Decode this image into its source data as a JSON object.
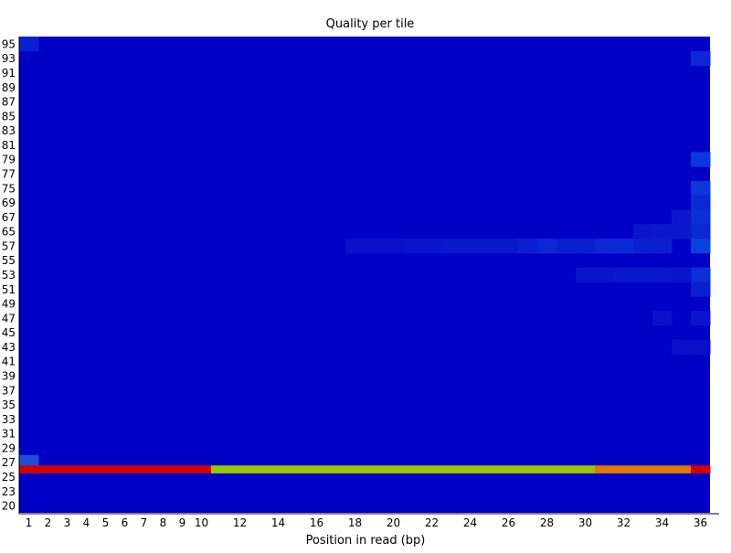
{
  "chart_data": {
    "type": "heatmap",
    "title": "Quality per tile",
    "xlabel": "Position in read (bp)",
    "ylabel": "",
    "x_positions": [
      1,
      2,
      3,
      4,
      5,
      6,
      7,
      8,
      9,
      10,
      11,
      12,
      13,
      14,
      15,
      16,
      17,
      18,
      19,
      20,
      21,
      22,
      23,
      24,
      25,
      26,
      27,
      28,
      29,
      30,
      31,
      32,
      33,
      34,
      35,
      36
    ],
    "x_tick_labels": [
      "1",
      "2",
      "3",
      "4",
      "5",
      "6",
      "7",
      "8",
      "9",
      "10",
      "12",
      "14",
      "16",
      "18",
      "20",
      "22",
      "24",
      "26",
      "28",
      "30",
      "32",
      "34",
      "36"
    ],
    "y_tick_labels": [
      "95",
      "93",
      "91",
      "89",
      "87",
      "85",
      "83",
      "81",
      "79",
      "77",
      "75",
      "69",
      "67",
      "65",
      "57",
      "55",
      "53",
      "51",
      "49",
      "47",
      "45",
      "43",
      "41",
      "39",
      "37",
      "35",
      "33",
      "31",
      "29",
      "27",
      "25",
      "23",
      "20"
    ],
    "background_color": "#0000c6",
    "highlight_row": {
      "between_ticks": [
        "27",
        "25"
      ],
      "segments": [
        {
          "from": 1,
          "to": 10,
          "color": "#d40000"
        },
        {
          "from": 11,
          "to": 30,
          "color": "#9bc600"
        },
        {
          "from": 31,
          "to": 35,
          "color": "#e07a00"
        },
        {
          "from": 36,
          "to": 36,
          "color": "#d40000"
        }
      ]
    },
    "minor_cells": [
      {
        "x": 1,
        "y_tick": "27",
        "color": "#1a50d8"
      },
      {
        "x": 1,
        "y_tick": "95",
        "color": "#0a20d0"
      },
      {
        "x": 36,
        "y_tick": "93",
        "color": "#0a28d4"
      },
      {
        "x": 36,
        "y_tick": "79",
        "color": "#0a38da"
      },
      {
        "x": 36,
        "y_tick": "75",
        "color": "#0a38da"
      },
      {
        "x": 36,
        "y_tick": "69",
        "color": "#0a28d4"
      },
      {
        "x": 36,
        "y_tick": "67",
        "color": "#0a30d6"
      },
      {
        "x": 36,
        "y_tick": "65",
        "color": "#0a28d4"
      },
      {
        "x": 36,
        "y_tick": "57",
        "color": "#0a40dc"
      },
      {
        "x": 36,
        "y_tick": "53",
        "color": "#0a30d6"
      },
      {
        "x": 35,
        "y_tick": "67",
        "color": "#0a18cc"
      },
      {
        "x": 34,
        "y_tick": "57",
        "color": "#0a20d0"
      },
      {
        "x": 33,
        "y_tick": "57",
        "color": "#0a20d0"
      },
      {
        "x": 32,
        "y_tick": "57",
        "color": "#0a28d4"
      },
      {
        "x": 31,
        "y_tick": "57",
        "color": "#0a28d4"
      },
      {
        "x": 30,
        "y_tick": "57",
        "color": "#0a20d0"
      },
      {
        "x": 29,
        "y_tick": "57",
        "color": "#0a20d0"
      },
      {
        "x": 28,
        "y_tick": "57",
        "color": "#0a28d4"
      },
      {
        "x": 27,
        "y_tick": "57",
        "color": "#0a20d0"
      },
      {
        "x": 26,
        "y_tick": "57",
        "color": "#0a18cc"
      },
      {
        "x": 25,
        "y_tick": "57",
        "color": "#0a18cc"
      },
      {
        "x": 24,
        "y_tick": "57",
        "color": "#0a18cc"
      },
      {
        "x": 23,
        "y_tick": "57",
        "color": "#0a18cc"
      },
      {
        "x": 22,
        "y_tick": "57",
        "color": "#0a14ca"
      },
      {
        "x": 21,
        "y_tick": "57",
        "color": "#0a14ca"
      },
      {
        "x": 20,
        "y_tick": "57",
        "color": "#0a10c8"
      },
      {
        "x": 19,
        "y_tick": "57",
        "color": "#0a10c8"
      },
      {
        "x": 18,
        "y_tick": "57",
        "color": "#0a10c8"
      },
      {
        "x": 33,
        "y_tick": "65",
        "color": "#0a14ca"
      },
      {
        "x": 34,
        "y_tick": "65",
        "color": "#0a18cc"
      },
      {
        "x": 35,
        "y_tick": "65",
        "color": "#0a18cc"
      },
      {
        "x": 32,
        "y_tick": "53",
        "color": "#0a18cc"
      },
      {
        "x": 33,
        "y_tick": "53",
        "color": "#0a18cc"
      },
      {
        "x": 34,
        "y_tick": "53",
        "color": "#0a18cc"
      },
      {
        "x": 35,
        "y_tick": "53",
        "color": "#0a14ca"
      },
      {
        "x": 31,
        "y_tick": "53",
        "color": "#0a14ca"
      },
      {
        "x": 30,
        "y_tick": "53",
        "color": "#0a14ca"
      },
      {
        "x": 36,
        "y_tick": "51",
        "color": "#0a20d0"
      },
      {
        "x": 34,
        "y_tick": "47",
        "color": "#0a10c8"
      },
      {
        "x": 36,
        "y_tick": "47",
        "color": "#0a14ca"
      },
      {
        "x": 35,
        "y_tick": "43",
        "color": "#0a10c8"
      },
      {
        "x": 36,
        "y_tick": "43",
        "color": "#0a10c8"
      }
    ]
  }
}
